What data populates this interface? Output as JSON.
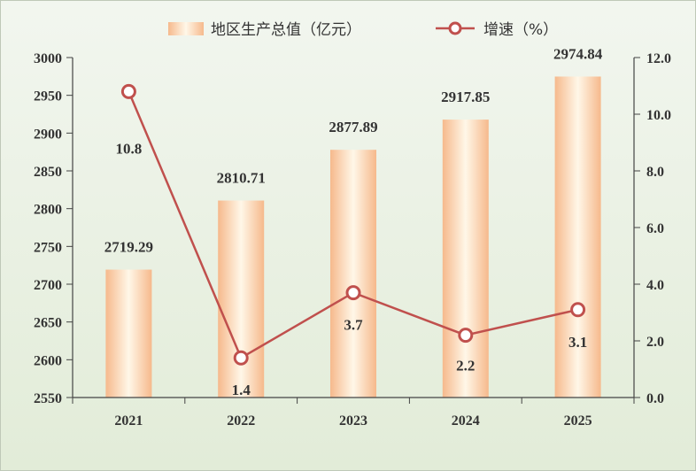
{
  "chart_data": {
    "type": "bar",
    "categories": [
      "2021",
      "2022",
      "2023",
      "2024",
      "2025"
    ],
    "series": [
      {
        "name": "地区生产总值（亿元）",
        "type": "bar",
        "axis": "left",
        "values": [
          2719.29,
          2810.71,
          2877.89,
          2917.85,
          2974.84
        ],
        "labels": [
          "2719.29",
          "2810.71",
          "2877.89",
          "2917.85",
          "2974.84"
        ]
      },
      {
        "name": "增速（%）",
        "type": "line",
        "axis": "right",
        "values": [
          10.8,
          1.4,
          3.7,
          2.2,
          3.1
        ],
        "labels": [
          "10.8",
          "1.4",
          "3.7",
          "2.2",
          "3.1"
        ]
      }
    ],
    "y_left": {
      "min": 2550,
      "max": 3000,
      "ticks": [
        "2550",
        "2600",
        "2650",
        "2700",
        "2750",
        "2800",
        "2850",
        "2900",
        "2950",
        "3000"
      ]
    },
    "y_right": {
      "min": 0,
      "max": 12,
      "ticks": [
        "0.0",
        "2.0",
        "4.0",
        "6.0",
        "8.0",
        "10.0",
        "12.0"
      ]
    },
    "title": "",
    "xlabel": "",
    "ylabel": "",
    "grid": false,
    "legend_position": "top-center",
    "colors": {
      "background_top": "#f2f6ef",
      "background_bottom": "#e2ecd8",
      "bar_edge": "#f6b98c",
      "bar_center": "#fff7e8",
      "line": "#c0504d",
      "marker_fill": "#ffffff",
      "axis": "#444444",
      "text": "#333333"
    }
  }
}
